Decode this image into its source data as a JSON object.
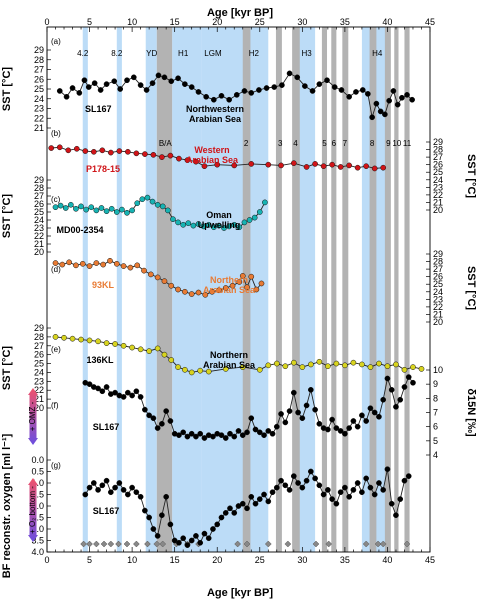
{
  "chart_data": {
    "type": "line",
    "x_axis": {
      "label": "Age [kyr BP]",
      "range": [
        0,
        45
      ],
      "ticks": [
        0,
        5,
        10,
        15,
        20,
        25,
        30,
        35,
        40,
        45
      ]
    },
    "event_labels": [
      {
        "text": "4.2",
        "age": 4.2,
        "panel": "a"
      },
      {
        "text": "8.2",
        "age": 8.2,
        "panel": "a"
      },
      {
        "text": "YD",
        "age": 12.3,
        "panel": "a"
      },
      {
        "text": "H1",
        "age": 16.0,
        "panel": "a"
      },
      {
        "text": "LGM",
        "age": 19.5,
        "panel": "a"
      },
      {
        "text": "H2",
        "age": 24.3,
        "panel": "a"
      },
      {
        "text": "H3",
        "age": 30.5,
        "panel": "a"
      },
      {
        "text": "H4",
        "age": 38.8,
        "panel": "a"
      },
      {
        "text": "B/A",
        "age": 13.9,
        "panel": "b"
      },
      {
        "text": "2",
        "age": 23.4,
        "panel": "b"
      },
      {
        "text": "3",
        "age": 27.4,
        "panel": "b"
      },
      {
        "text": "4",
        "age": 29.2,
        "panel": "b"
      },
      {
        "text": "5",
        "age": 32.6,
        "panel": "b"
      },
      {
        "text": "6",
        "age": 33.7,
        "panel": "b"
      },
      {
        "text": "7",
        "age": 35.0,
        "panel": "b"
      },
      {
        "text": "8",
        "age": 38.2,
        "panel": "b"
      },
      {
        "text": "9",
        "age": 40.1,
        "panel": "b"
      },
      {
        "text": "10",
        "age": 41.1,
        "panel": "b"
      },
      {
        "text": "11",
        "age": 42.3,
        "panel": "b"
      }
    ],
    "blue_bands": [
      [
        4.2,
        4.8
      ],
      [
        8.2,
        8.8
      ],
      [
        11.6,
        12.9
      ],
      [
        14.7,
        18.2
      ],
      [
        18.2,
        26.0
      ],
      [
        29.5,
        31.5
      ],
      [
        37.0,
        40.0
      ]
    ],
    "grey_bands": [
      [
        12.9,
        14.7
      ],
      [
        23.0,
        23.9
      ],
      [
        26.9,
        27.6
      ],
      [
        28.8,
        29.7
      ],
      [
        32.3,
        32.9
      ],
      [
        33.4,
        34.0
      ],
      [
        34.7,
        35.4
      ],
      [
        37.9,
        38.7
      ],
      [
        39.7,
        40.4
      ],
      [
        40.8,
        41.3
      ],
      [
        42.0,
        42.6
      ]
    ],
    "age_control": [
      4.3,
      5.0,
      5.8,
      6.7,
      7.5,
      8.4,
      9.4,
      10.5,
      11.8,
      12.9,
      13.6,
      15.2,
      16.5,
      17.8,
      22.4,
      23.5,
      26.0,
      28.3,
      31.6,
      33.1,
      37.5,
      38.9,
      39.5,
      42.3
    ],
    "panels": [
      {
        "id": "a",
        "label": "(a)",
        "core": "SL167",
        "region": "Northwestern Arabian Sea",
        "ylabel": "SST [°C]",
        "yaxis_side": "left",
        "ylim": [
          21,
          29
        ],
        "yticks": [
          21,
          22,
          23,
          24,
          25,
          26,
          27,
          28,
          29
        ],
        "color": "#000000",
        "x": [
          1.5,
          2.3,
          3.0,
          3.8,
          4.4,
          4.9,
          5.6,
          6.3,
          7.0,
          7.9,
          8.6,
          9.4,
          10.2,
          11.0,
          11.7,
          12.4,
          13.1,
          13.8,
          14.6,
          15.4,
          16.2,
          17.0,
          17.8,
          18.7,
          19.6,
          20.5,
          21.4,
          22.3,
          23.2,
          24.0,
          24.9,
          25.8,
          26.7,
          27.6,
          28.5,
          29.4,
          30.3,
          31.2,
          32.0,
          32.9,
          33.8,
          34.6,
          35.5,
          36.3,
          37.1,
          37.7,
          38.2,
          38.7,
          39.2,
          39.7,
          40.2,
          40.7,
          41.2,
          41.7,
          42.3,
          42.9
        ],
        "y": [
          24.8,
          24.2,
          25.1,
          24.6,
          25.9,
          25.2,
          25.6,
          24.9,
          25.5,
          25.8,
          25.0,
          25.9,
          26.2,
          25.4,
          24.9,
          25.6,
          26.4,
          26.2,
          25.8,
          26.1,
          25.5,
          25.2,
          24.7,
          24.2,
          23.9,
          24.3,
          23.9,
          24.4,
          24.8,
          24.6,
          24.9,
          25.1,
          25.2,
          25.4,
          26.6,
          26.2,
          25.3,
          24.8,
          25.5,
          25.9,
          25.2,
          24.9,
          24.2,
          24.7,
          24.9,
          24.5,
          22.1,
          23.5,
          22.7,
          22.4,
          23.8,
          24.8,
          23.4,
          24.1,
          24.4,
          23.9
        ]
      },
      {
        "id": "b",
        "label": "(b)",
        "core": "P178-15",
        "region": "Western Arabian Sea",
        "ylabel": "SST [°C]",
        "yaxis_side": "right",
        "ylim": [
          20,
          29
        ],
        "yticks": [
          20,
          21,
          22,
          23,
          24,
          25,
          26,
          27,
          28,
          29
        ],
        "color": "#d01418",
        "x": [
          0.5,
          1.5,
          2.5,
          3.5,
          4.5,
          5.5,
          6.5,
          7.5,
          8.5,
          9.5,
          10.5,
          11.5,
          12.5,
          13.5,
          14.5,
          15.5,
          16.5,
          17.5,
          18.5,
          20.0,
          22.0,
          24.0,
          26.0,
          27.5,
          29.0,
          30.5,
          31.5,
          32.5,
          33.5,
          34.5,
          35.5,
          36.5,
          37.5,
          38.5,
          39.5
        ],
        "y": [
          28.2,
          28.3,
          27.9,
          28.1,
          27.8,
          27.7,
          27.9,
          27.6,
          27.8,
          27.7,
          27.5,
          27.4,
          27.3,
          27.0,
          27.2,
          26.8,
          26.6,
          26.4,
          25.8,
          26.0,
          25.9,
          26.1,
          26.0,
          25.9,
          26.2,
          25.7,
          26.1,
          25.8,
          26.0,
          25.7,
          25.9,
          25.6,
          25.8,
          25.5,
          25.6
        ]
      },
      {
        "id": "c",
        "label": "(c)",
        "core": "MD00-2354",
        "region": "Oman Upwelling",
        "ylabel": "SST [°C]",
        "yaxis_side": "left",
        "ylim": [
          20,
          29
        ],
        "yticks": [
          20,
          21,
          22,
          23,
          24,
          25,
          26,
          27,
          28,
          29
        ],
        "color": "#17b3b3",
        "x": [
          1.0,
          1.6,
          2.2,
          2.8,
          3.4,
          4.0,
          4.6,
          5.2,
          5.8,
          6.4,
          7.0,
          7.6,
          8.2,
          8.8,
          9.4,
          10.0,
          10.6,
          11.2,
          11.8,
          12.4,
          13.0,
          13.6,
          14.2,
          14.8,
          15.4,
          16.0,
          16.6,
          17.2,
          17.8,
          18.4,
          19.0,
          19.6,
          20.2,
          20.8,
          21.4,
          22.0,
          22.6,
          23.2,
          23.8,
          24.4,
          25.0,
          25.6
        ],
        "y": [
          25.6,
          25.8,
          25.5,
          25.9,
          25.4,
          25.7,
          25.3,
          25.6,
          25.2,
          25.5,
          25.1,
          25.4,
          25.0,
          25.3,
          24.9,
          25.2,
          26.1,
          26.6,
          26.8,
          26.3,
          25.9,
          25.7,
          25.2,
          24.1,
          23.7,
          23.4,
          23.6,
          23.3,
          23.5,
          23.2,
          23.4,
          23.1,
          23.3,
          23.0,
          23.2,
          23.4,
          23.1,
          23.7,
          24.0,
          24.3,
          25.0,
          26.2
        ]
      },
      {
        "id": "d",
        "label": "(d)",
        "core": "93KL",
        "region": "Northern Arabian Sea",
        "ylabel": "SST [°C]",
        "yaxis_side": "right",
        "ylim": [
          20,
          29
        ],
        "yticks": [
          20,
          21,
          22,
          23,
          24,
          25,
          26,
          27,
          28,
          29
        ],
        "color": "#e87b34",
        "x": [
          1.0,
          1.8,
          2.6,
          3.4,
          4.2,
          5.0,
          5.8,
          6.6,
          7.4,
          8.2,
          9.0,
          9.8,
          10.6,
          11.4,
          12.2,
          13.0,
          13.8,
          14.6,
          15.4,
          16.2,
          17.0,
          17.8,
          18.6,
          19.4,
          20.2,
          21.0,
          21.8,
          22.6,
          23.0,
          23.5,
          24.0,
          24.6,
          25.2
        ],
        "y": [
          27.8,
          27.6,
          27.9,
          27.5,
          27.7,
          27.4,
          27.8,
          27.6,
          28.1,
          27.7,
          27.4,
          27.2,
          27.5,
          26.8,
          26.3,
          25.9,
          25.4,
          24.8,
          24.3,
          24.0,
          23.7,
          23.9,
          23.6,
          24.0,
          24.2,
          24.5,
          24.8,
          25.3,
          26.1,
          24.6,
          26.0,
          24.3,
          25.1
        ]
      },
      {
        "id": "e",
        "label": "(e)",
        "core": "136KL",
        "region": "Northern Arabian Sea",
        "ylabel": "SST [°C]",
        "yaxis_side": "left",
        "ylim": [
          20,
          29
        ],
        "yticks": [
          20,
          21,
          22,
          23,
          24,
          25,
          26,
          27,
          28,
          29
        ],
        "color": "#d8d41f",
        "x": [
          1.0,
          2.0,
          3.0,
          4.0,
          5.0,
          6.0,
          7.0,
          8.0,
          9.0,
          10.0,
          11.0,
          12.0,
          13.0,
          13.8,
          14.6,
          15.4,
          16.2,
          17.0,
          18.0,
          19.0,
          21.0,
          23.0,
          25.0,
          26.0,
          27.0,
          28.0,
          29.0,
          30.0,
          31.0,
          32.0,
          33.0,
          34.0,
          35.0,
          36.0,
          37.0,
          38.0,
          39.0,
          40.0,
          41.0,
          42.0,
          43.0,
          44.0
        ],
        "y": [
          28.0,
          27.9,
          27.8,
          27.7,
          27.6,
          27.5,
          27.3,
          27.2,
          27.0,
          26.8,
          26.6,
          26.4,
          26.7,
          26.0,
          25.4,
          24.6,
          24.3,
          24.0,
          24.2,
          24.1,
          24.4,
          24.6,
          24.3,
          24.8,
          25.0,
          24.7,
          25.1,
          24.6,
          24.9,
          25.2,
          24.7,
          25.0,
          24.8,
          25.1,
          24.9,
          24.6,
          25.0,
          24.7,
          24.9,
          24.3,
          24.6,
          24.4
        ]
      },
      {
        "id": "f",
        "label": "(f)",
        "core": "SL167",
        "ylabel": "δ15N [‰]",
        "yaxis_side": "right",
        "ylim": [
          4,
          10
        ],
        "yticks": [
          4,
          5,
          6,
          7,
          8,
          9,
          10
        ],
        "color": "#000000",
        "side_arrow": "+ OMZ -",
        "x": [
          4.5,
          5.0,
          5.5,
          6.0,
          6.5,
          7.0,
          7.5,
          8.0,
          8.5,
          9.0,
          9.5,
          10.0,
          10.5,
          11.0,
          11.5,
          12.0,
          12.5,
          13.0,
          13.5,
          14.0,
          14.5,
          15.0,
          15.5,
          16.0,
          16.5,
          17.0,
          17.5,
          18.0,
          18.5,
          19.0,
          19.5,
          20.0,
          20.5,
          21.0,
          21.5,
          22.0,
          22.5,
          23.0,
          23.5,
          24.0,
          24.5,
          25.0,
          25.5,
          26.0,
          26.5,
          27.0,
          27.5,
          28.0,
          28.5,
          29.0,
          29.5,
          30.0,
          30.5,
          31.0,
          31.5,
          32.0,
          32.5,
          33.0,
          33.5,
          34.0,
          34.5,
          35.0,
          35.5,
          36.0,
          36.5,
          37.0,
          37.5,
          38.0,
          38.5,
          39.0,
          39.5,
          40.0,
          40.5,
          41.0,
          41.5,
          42.0,
          42.5,
          43.0
        ],
        "y": [
          9.1,
          9.0,
          8.8,
          8.7,
          8.5,
          8.8,
          8.3,
          8.4,
          8.2,
          8.1,
          8.4,
          8.2,
          8.5,
          8.1,
          7.2,
          6.8,
          6.6,
          5.9,
          6.2,
          7.1,
          6.4,
          5.5,
          5.4,
          5.6,
          5.3,
          5.5,
          5.3,
          5.5,
          5.2,
          5.4,
          5.3,
          5.5,
          5.4,
          5.2,
          5.5,
          5.3,
          5.7,
          5.4,
          5.6,
          6.6,
          5.8,
          5.6,
          5.4,
          5.7,
          5.5,
          6.0,
          6.9,
          6.3,
          7.1,
          8.4,
          7.0,
          6.6,
          7.5,
          8.6,
          7.2,
          6.2,
          5.9,
          5.8,
          6.5,
          5.9,
          5.7,
          5.5,
          5.9,
          6.4,
          6.0,
          6.8,
          6.4,
          7.3,
          7.0,
          6.7,
          7.9,
          9.4,
          8.6,
          7.4,
          7.9,
          8.8,
          9.5,
          9.1
        ]
      },
      {
        "id": "g",
        "label": "(g)",
        "core": "SL167",
        "ylabel": "BF reconstr. oxygen [ml l⁻¹]",
        "yaxis_side": "left",
        "ylim": [
          0,
          4.0
        ],
        "inverted": true,
        "yticks": [
          0.0,
          0.5,
          1.0,
          1.5,
          2.0,
          2.5,
          3.0,
          3.5,
          4.0
        ],
        "color": "#000000",
        "side_arrow": "+ O₂ bottom -",
        "x": [
          4.5,
          5.0,
          5.5,
          6.0,
          6.5,
          7.0,
          7.5,
          8.0,
          8.5,
          9.0,
          9.5,
          10.0,
          10.5,
          11.0,
          11.5,
          12.0,
          12.5,
          13.0,
          13.5,
          14.0,
          14.5,
          15.0,
          15.5,
          16.0,
          16.5,
          17.0,
          17.5,
          18.0,
          18.5,
          19.0,
          19.5,
          20.0,
          20.5,
          21.0,
          21.5,
          22.0,
          22.5,
          23.0,
          23.5,
          24.0,
          24.5,
          25.0,
          25.5,
          26.0,
          26.5,
          27.0,
          27.5,
          28.0,
          28.5,
          29.0,
          29.5,
          30.0,
          30.5,
          31.0,
          31.5,
          32.0,
          32.5,
          33.0,
          33.5,
          34.0,
          34.5,
          35.0,
          35.5,
          36.0,
          36.5,
          37.0,
          37.5,
          38.0,
          38.5,
          39.0,
          39.5,
          40.0,
          40.5,
          41.0,
          41.5,
          42.0,
          42.5
        ],
        "y": [
          1.5,
          1.2,
          1.0,
          1.3,
          1.1,
          0.9,
          1.4,
          1.2,
          1.0,
          1.3,
          1.5,
          1.2,
          1.4,
          1.6,
          2.2,
          2.5,
          3.0,
          3.3,
          2.4,
          1.6,
          2.8,
          3.5,
          3.6,
          3.4,
          3.7,
          3.5,
          3.3,
          3.6,
          3.2,
          3.4,
          3.0,
          2.8,
          2.5,
          2.3,
          2.1,
          2.3,
          2.0,
          1.9,
          2.1,
          1.6,
          1.9,
          1.7,
          1.5,
          1.8,
          1.4,
          1.2,
          0.9,
          1.1,
          1.3,
          0.7,
          1.0,
          1.2,
          0.9,
          0.5,
          0.8,
          1.1,
          1.5,
          1.3,
          1.7,
          1.9,
          1.4,
          1.2,
          1.6,
          1.3,
          1.0,
          1.4,
          0.8,
          1.2,
          1.5,
          1.0,
          1.3,
          0.4,
          1.9,
          2.4,
          1.7,
          0.9,
          0.7
        ]
      }
    ]
  }
}
